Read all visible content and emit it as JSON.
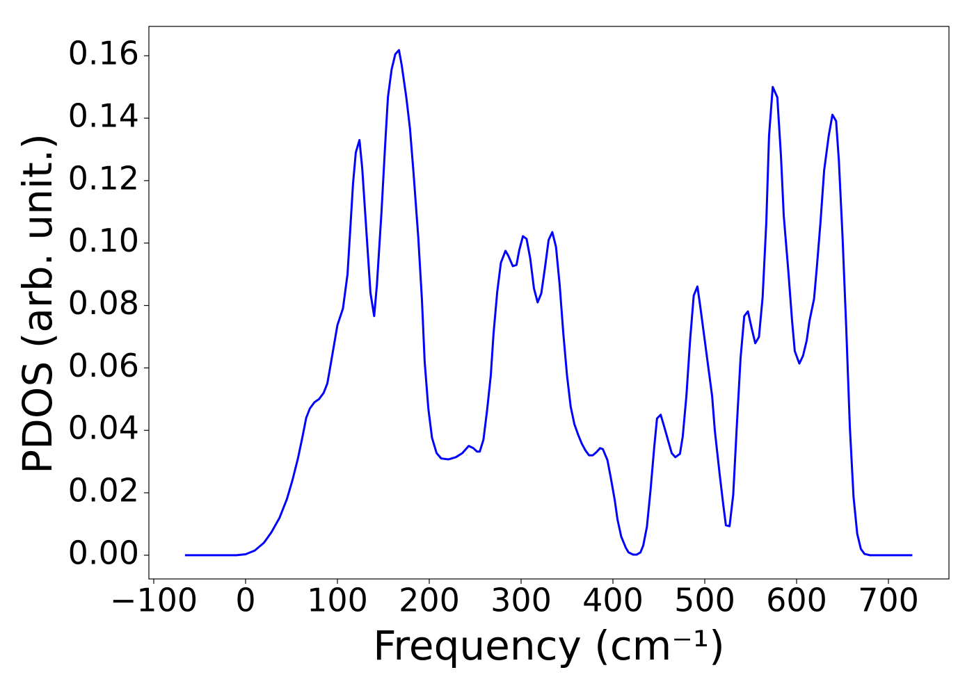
{
  "chart_data": {
    "type": "line",
    "x_label": "Frequency (cm⁻¹)",
    "y_label": "PDOS (arb. unit.)",
    "xlim": [
      -105.3,
      765.9
    ],
    "ylim": [
      -0.0076,
      0.1694
    ],
    "xticks": [
      {
        "value": -100,
        "label": "−100"
      },
      0,
      100,
      200,
      300,
      400,
      500,
      600,
      700
    ],
    "yticks": [
      {
        "value": 0,
        "label": "0.00"
      },
      0.02,
      0.04,
      0.06,
      0.08,
      {
        "value": 0.1,
        "label": "0.10"
      },
      0.12,
      0.14,
      0.16
    ],
    "grid": false,
    "x": [
      -66,
      -10,
      0,
      10,
      20,
      28,
      37,
      45,
      51,
      57,
      62,
      66,
      70,
      75,
      80,
      85,
      89,
      92,
      100,
      106,
      111,
      117,
      120,
      124,
      127,
      136,
      140,
      143,
      148,
      152,
      155,
      159,
      163,
      167,
      170,
      175,
      179,
      183,
      188,
      192,
      195,
      199,
      203,
      208,
      213,
      221,
      229,
      236,
      243,
      248,
      252,
      255,
      259,
      263,
      267,
      270,
      274,
      278,
      283,
      286,
      291,
      295,
      298,
      302,
      306,
      310,
      314,
      318,
      322,
      326,
      330,
      334,
      338,
      342,
      346,
      350,
      354,
      358,
      362,
      366,
      370,
      374,
      378,
      382,
      386,
      389,
      394,
      398,
      402,
      405,
      409,
      414,
      417,
      422,
      426,
      430,
      433,
      437,
      441,
      445,
      448,
      452,
      456,
      461,
      464,
      468,
      473,
      476,
      480,
      484,
      488,
      492,
      495,
      500,
      504,
      508,
      511,
      516,
      520,
      523,
      527,
      531,
      535,
      539,
      543,
      547,
      551,
      555,
      559,
      563,
      567,
      570,
      574,
      579,
      583,
      586,
      591,
      595,
      598,
      603,
      607,
      611,
      614,
      619,
      622,
      626,
      630,
      635,
      639,
      643,
      646,
      650,
      654,
      658,
      662,
      666,
      670,
      674,
      680,
      726
    ],
    "series": [
      {
        "name": "PDOS",
        "color": "#0000ff",
        "values": [
          0,
          0,
          0.0003,
          0.0015,
          0.004,
          0.0073,
          0.012,
          0.018,
          0.024,
          0.031,
          0.038,
          0.044,
          0.047,
          0.049,
          0.05,
          0.052,
          0.055,
          0.06,
          0.0737,
          0.079,
          0.09,
          0.119,
          0.129,
          0.133,
          0.124,
          0.084,
          0.0766,
          0.0866,
          0.11,
          0.1316,
          0.1467,
          0.1556,
          0.1605,
          0.1618,
          0.157,
          0.1467,
          0.1367,
          0.122,
          0.102,
          0.082,
          0.062,
          0.047,
          0.0376,
          0.0327,
          0.031,
          0.0307,
          0.0314,
          0.0327,
          0.035,
          0.0343,
          0.0332,
          0.0332,
          0.037,
          0.0465,
          0.0576,
          0.071,
          0.0843,
          0.0937,
          0.0975,
          0.096,
          0.0926,
          0.093,
          0.0977,
          0.1022,
          0.1013,
          0.095,
          0.0855,
          0.081,
          0.0839,
          0.0921,
          0.101,
          0.1035,
          0.0988,
          0.0866,
          0.071,
          0.0576,
          0.0476,
          0.042,
          0.0387,
          0.0358,
          0.0336,
          0.032,
          0.032,
          0.033,
          0.0343,
          0.034,
          0.0305,
          0.0243,
          0.0176,
          0.0114,
          0.006,
          0.0024,
          0.0009,
          0.0002,
          0.0002,
          0.0009,
          0.0031,
          0.0091,
          0.021,
          0.0347,
          0.0438,
          0.045,
          0.041,
          0.0358,
          0.0327,
          0.0314,
          0.0325,
          0.038,
          0.051,
          0.0688,
          0.0832,
          0.0861,
          0.0799,
          0.0688,
          0.0599,
          0.051,
          0.0398,
          0.0265,
          0.0165,
          0.0096,
          0.0093,
          0.0194,
          0.042,
          0.0632,
          0.0766,
          0.0781,
          0.0728,
          0.0679,
          0.0699,
          0.0826,
          0.1066,
          0.1344,
          0.15,
          0.1467,
          0.1278,
          0.1088,
          0.091,
          0.0754,
          0.0654,
          0.0614,
          0.0639,
          0.0688,
          0.075,
          0.0821,
          0.0921,
          0.1066,
          0.1233,
          0.1344,
          0.1411,
          0.1391,
          0.1266,
          0.1022,
          0.0732,
          0.041,
          0.0187,
          0.0069,
          0.002,
          0.0004,
          0,
          0
        ]
      }
    ]
  }
}
